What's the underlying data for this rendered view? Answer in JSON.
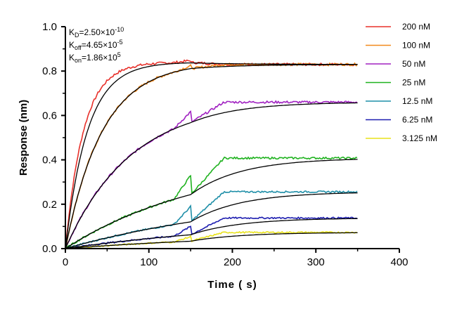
{
  "chart_data": {
    "type": "line",
    "xlabel": "Time ( s)",
    "ylabel": "Response (nm)",
    "xlim": [
      0,
      400
    ],
    "ylim": [
      0,
      1.0
    ],
    "xticks": [
      "0",
      "100",
      "200",
      "300",
      "400"
    ],
    "yticks": [
      "0.0",
      "0.2",
      "0.4",
      "0.6",
      "0.8",
      "1.0"
    ],
    "grid": false,
    "legend_position": "right",
    "association_end": 150,
    "time_end": 350,
    "kinetics": [
      {
        "main": "K",
        "sub": "D",
        "text": "=2.50×10",
        "exp": "-10"
      },
      {
        "main": "K",
        "sub": "off",
        "text": "=4.65×10",
        "exp": "-5"
      },
      {
        "main": "K",
        "sub": "on",
        "text": "=1.86×10",
        "exp": "5"
      }
    ],
    "series": [
      {
        "name": "200 nM",
        "color": "#e8302a",
        "plateau": 0.84,
        "end": 0.83,
        "k": 0.046,
        "peak": 0.855
      },
      {
        "name": "100 nM",
        "color": "#f28a1c",
        "plateau": 0.84,
        "end": 0.83,
        "k": 0.0225,
        "peak": 0.835
      },
      {
        "name": "50 nM",
        "color": "#a021c1",
        "plateau": 0.665,
        "end": 0.66,
        "k": 0.0128,
        "peak": 0.665
      },
      {
        "name": "25 nM",
        "color": "#1fb21f",
        "plateau": 0.41,
        "end": 0.408,
        "k": 0.006,
        "peak": 0.415
      },
      {
        "name": "12.5 nM",
        "color": "#1f8fa8",
        "plateau": 0.258,
        "end": 0.256,
        "k": 0.0042,
        "peak": 0.258
      },
      {
        "name": "6.25 nM",
        "color": "#1d1db0",
        "plateau": 0.138,
        "end": 0.138,
        "k": 0.004,
        "peak": 0.138
      },
      {
        "name": "3.125 nM",
        "color": "#e8e21a",
        "plateau": 0.074,
        "end": 0.073,
        "k": 0.004,
        "peak": 0.074
      }
    ],
    "fit_color": "#000000"
  }
}
